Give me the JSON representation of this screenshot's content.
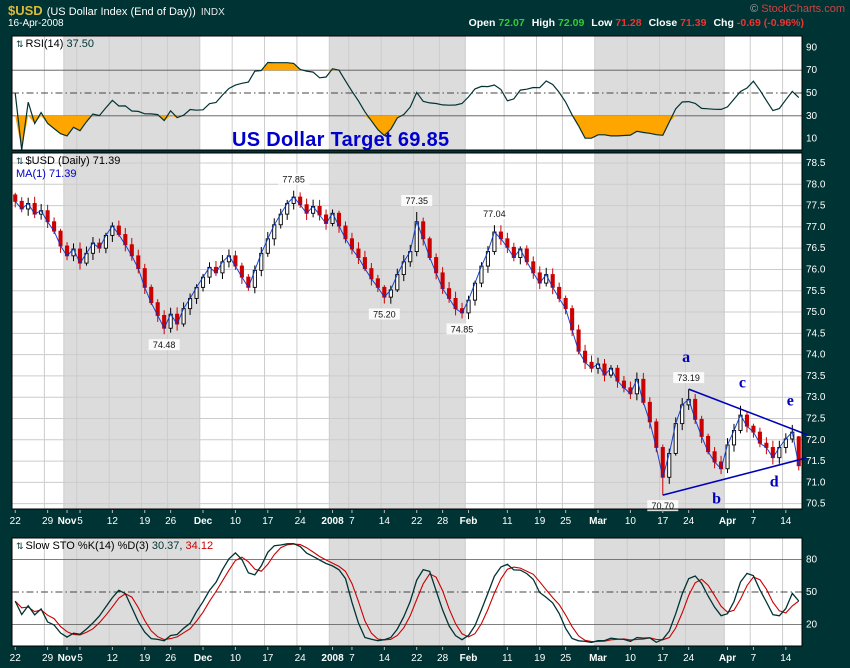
{
  "header": {
    "symbol": "$USD",
    "name": "(US Dollar Index (End of Day))",
    "exchange": "INDX",
    "copyright": "©",
    "source": "StockCharts.com",
    "date": "16-Apr-2008",
    "quote": {
      "open_label": "Open",
      "open": "72.07",
      "high_label": "High",
      "high": "72.09",
      "low_label": "Low",
      "low": "71.28",
      "close_label": "Close",
      "close": "71.39",
      "chg_label": "Chg",
      "chg": "-0.69 (-0.96%)"
    }
  },
  "panels": {
    "rsi_label": "RSI(14)",
    "rsi_value": "37.50",
    "price_label": "$USD (Daily)",
    "price_value": "71.39",
    "ma_label": "MA(1)",
    "ma_value": "71.39",
    "sto_label": "Slow STO %K(14) %D(3)",
    "sto_k": "30.37,",
    "sto_d": "34.12"
  },
  "annotation": {
    "text": "US Dollar Target 69.85"
  },
  "colors": {
    "background": "#003333",
    "panel_white": "#ffffff",
    "panel_shade": "#dcdcdc",
    "grid": "#cccccc",
    "candle_up": "#000000",
    "candle_down": "#cc0000",
    "ma": "#0033cc",
    "rsi_line": "#013333",
    "rsi_fill": "#ffa500",
    "sto_k": "#013333",
    "sto_d": "#cc0000",
    "trend": "#0000bb",
    "annotation": "#0000cc",
    "axis_text": "#ffffff"
  },
  "chart_data": {
    "type": "candlestick",
    "symbol": "$USD",
    "timeframe": "Daily",
    "x_ticks": [
      {
        "l": "22",
        "i": 0,
        "m": 0
      },
      {
        "l": "29",
        "i": 5,
        "m": 0
      },
      {
        "l": "Nov",
        "i": 8,
        "m": 1
      },
      {
        "l": "5",
        "i": 10,
        "m": 0
      },
      {
        "l": "12",
        "i": 15,
        "m": 0
      },
      {
        "l": "19",
        "i": 20,
        "m": 0
      },
      {
        "l": "26",
        "i": 24,
        "m": 0
      },
      {
        "l": "Dec",
        "i": 29,
        "m": 1
      },
      {
        "l": "10",
        "i": 34,
        "m": 0
      },
      {
        "l": "17",
        "i": 39,
        "m": 0
      },
      {
        "l": "24",
        "i": 44,
        "m": 0
      },
      {
        "l": "2008",
        "i": 49,
        "m": 1
      },
      {
        "l": "7",
        "i": 52,
        "m": 0
      },
      {
        "l": "14",
        "i": 57,
        "m": 0
      },
      {
        "l": "22",
        "i": 62,
        "m": 0
      },
      {
        "l": "28",
        "i": 66,
        "m": 0
      },
      {
        "l": "Feb",
        "i": 70,
        "m": 1
      },
      {
        "l": "11",
        "i": 76,
        "m": 0
      },
      {
        "l": "19",
        "i": 81,
        "m": 0
      },
      {
        "l": "25",
        "i": 85,
        "m": 0
      },
      {
        "l": "Mar",
        "i": 90,
        "m": 1
      },
      {
        "l": "10",
        "i": 95,
        "m": 0
      },
      {
        "l": "17",
        "i": 100,
        "m": 0
      },
      {
        "l": "24",
        "i": 104,
        "m": 0
      },
      {
        "l": "Apr",
        "i": 110,
        "m": 1
      },
      {
        "l": "7",
        "i": 114,
        "m": 0
      },
      {
        "l": "14",
        "i": 119,
        "m": 0
      }
    ],
    "month_bands": [
      [
        0,
        8,
        0
      ],
      [
        8,
        29,
        1
      ],
      [
        29,
        49,
        0
      ],
      [
        49,
        70,
        1
      ],
      [
        70,
        90,
        0
      ],
      [
        90,
        110,
        1
      ],
      [
        110,
        122,
        0
      ]
    ],
    "price": {
      "ylim": [
        70.375,
        78.735
      ],
      "yticks": [
        78.5,
        78.0,
        77.5,
        77.0,
        76.5,
        76.0,
        75.5,
        75.0,
        74.5,
        74.0,
        73.5,
        73.0,
        72.5,
        72.0,
        71.5,
        71.0,
        70.5
      ],
      "close": [
        77.6,
        77.42,
        77.55,
        77.3,
        77.38,
        77.12,
        76.9,
        76.55,
        76.32,
        76.48,
        76.15,
        76.38,
        76.62,
        76.5,
        76.8,
        77.02,
        76.82,
        76.58,
        76.32,
        76.02,
        75.58,
        75.22,
        74.92,
        74.62,
        74.95,
        74.72,
        75.08,
        75.32,
        75.58,
        75.82,
        76.05,
        75.92,
        76.18,
        76.32,
        76.08,
        75.82,
        75.58,
        75.98,
        76.38,
        76.72,
        77.05,
        77.3,
        77.55,
        77.7,
        77.52,
        77.32,
        77.48,
        77.28,
        77.08,
        77.32,
        77.02,
        76.72,
        76.48,
        76.28,
        76.02,
        75.78,
        75.58,
        75.35,
        75.52,
        75.88,
        76.18,
        76.42,
        77.12,
        76.72,
        76.28,
        75.92,
        75.55,
        75.32,
        75.08,
        74.98,
        75.28,
        75.68,
        76.08,
        76.42,
        76.88,
        76.72,
        76.52,
        76.28,
        76.48,
        76.18,
        75.92,
        75.68,
        75.88,
        75.58,
        75.32,
        75.08,
        74.58,
        74.08,
        73.82,
        73.68,
        73.78,
        73.52,
        73.68,
        73.38,
        73.22,
        73.08,
        73.42,
        72.88,
        72.42,
        71.82,
        71.12,
        71.68,
        72.38,
        72.82,
        72.95,
        72.48,
        72.08,
        71.72,
        71.48,
        71.32,
        71.88,
        72.22,
        72.58,
        72.32,
        72.18,
        71.92,
        71.82,
        71.58,
        71.82,
        72.02,
        72.18,
        71.39
      ],
      "last_bar": {
        "open": 72.07,
        "high": 72.09,
        "low": 71.28,
        "close": 71.39
      },
      "key_points": [
        {
          "i": 23,
          "type": "low",
          "value": 74.48,
          "label": "74.48"
        },
        {
          "i": 43,
          "type": "high",
          "value": 77.85,
          "label": "77.85"
        },
        {
          "i": 57,
          "type": "low",
          "value": 75.2,
          "label": "75.20"
        },
        {
          "i": 62,
          "type": "high",
          "value": 77.35,
          "label": "77.35"
        },
        {
          "i": 69,
          "type": "low",
          "value": 74.85,
          "label": "74.85"
        },
        {
          "i": 74,
          "type": "high",
          "value": 77.04,
          "label": "77.04"
        },
        {
          "i": 100,
          "type": "low",
          "value": 70.7,
          "label": "70.70"
        },
        {
          "i": 104,
          "type": "high",
          "value": 73.19,
          "label": "73.19"
        },
        {
          "i": 112,
          "type": "high",
          "value": 72.8
        },
        {
          "i": 117,
          "type": "low",
          "value": 71.42
        },
        {
          "i": 120,
          "type": "high",
          "value": 72.35
        }
      ],
      "trendlines": [
        {
          "i1": 104,
          "p1": 73.19,
          "i2": 122.3,
          "p2": 72.12
        },
        {
          "i1": 100,
          "p1": 70.7,
          "i2": 122.3,
          "p2": 71.58
        }
      ],
      "wave_labels": [
        {
          "t": "a",
          "i": 103.6,
          "p": 73.95
        },
        {
          "t": "b",
          "i": 108.3,
          "p": 70.62
        },
        {
          "t": "c",
          "i": 112.3,
          "p": 73.35
        },
        {
          "t": "d",
          "i": 117.2,
          "p": 71.02
        },
        {
          "t": "e",
          "i": 119.7,
          "p": 72.92
        }
      ]
    },
    "rsi": {
      "period": 14,
      "yticks": [
        90,
        70,
        50,
        30,
        10
      ],
      "overbought": 70,
      "oversold": 30,
      "mid": 50,
      "last": 37.5
    },
    "sto": {
      "k_period": 14,
      "d_period": 3,
      "yticks": [
        80,
        50,
        20
      ],
      "upper": 80,
      "lower": 20,
      "mid": 50,
      "last_k": 30.37,
      "last_d": 34.12
    }
  }
}
